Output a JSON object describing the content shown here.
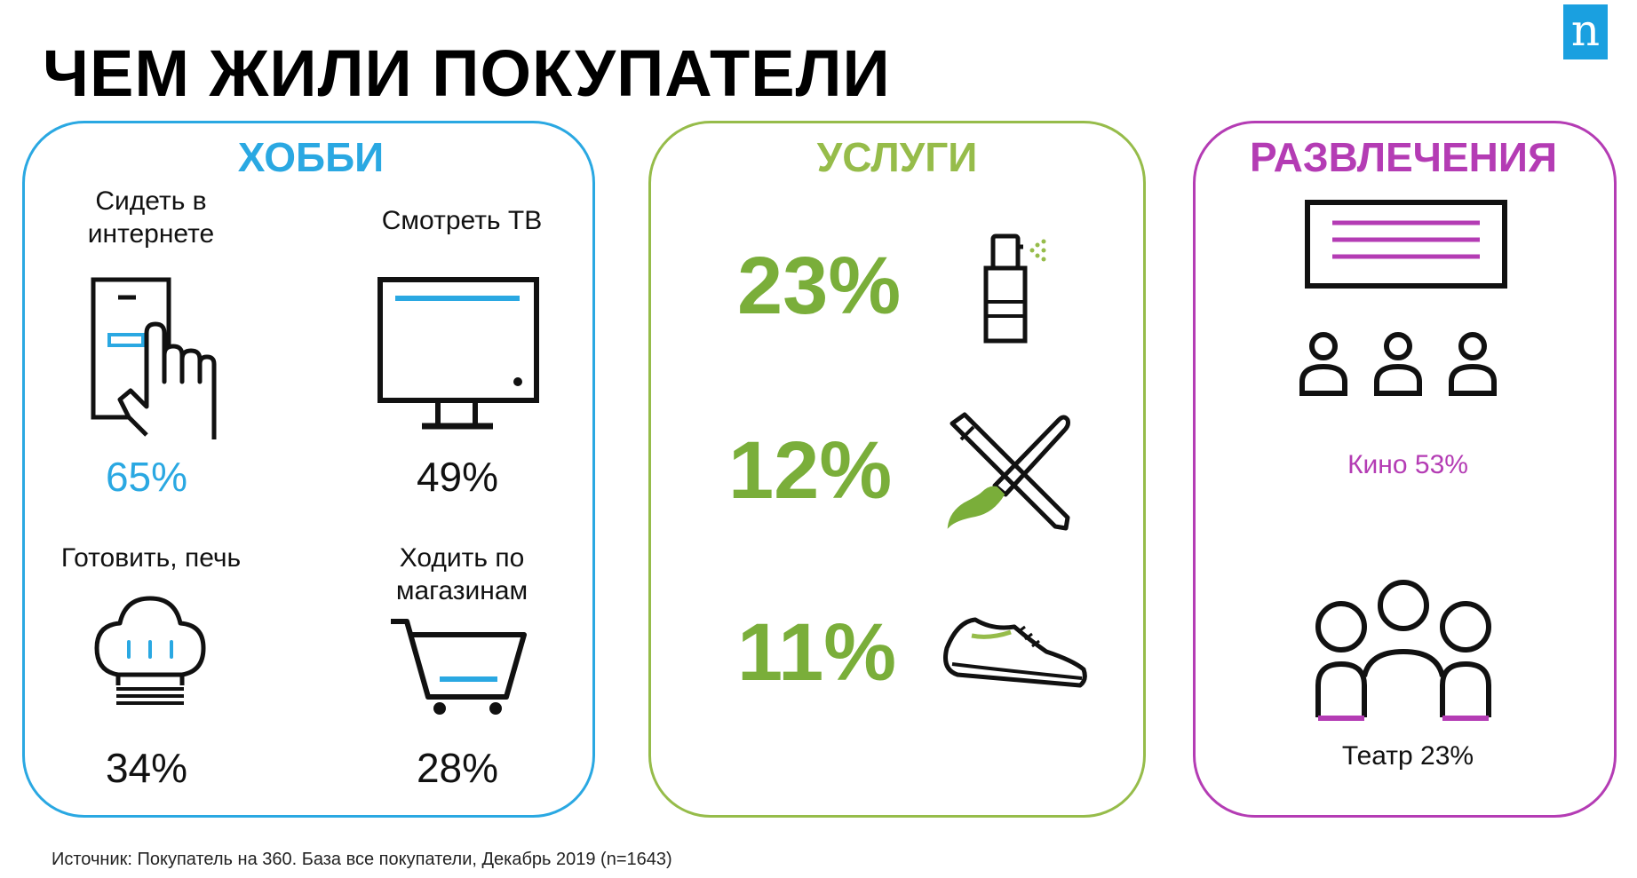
{
  "title": "ЧЕМ ЖИЛИ ПОКУПАТЕЛИ",
  "logo": "n",
  "colors": {
    "hobby": "#2aa8e2",
    "services": "#96bc4a",
    "services_text": "#7aae3a",
    "entertainment": "#b43cb4",
    "logo_bg": "#1aa0e0"
  },
  "hobby": {
    "title": "ХОББИ",
    "items": [
      {
        "label_line1": "Сидеть в",
        "label_line2": "интернете",
        "percent": "65%",
        "icon": "phone-tap-icon"
      },
      {
        "label_line1": "Смотреть ТВ",
        "label_line2": "",
        "percent": "49%",
        "icon": "tv-icon"
      },
      {
        "label_line1": "Готовить, печь",
        "label_line2": "",
        "percent": "34%",
        "icon": "chef-hat-icon"
      },
      {
        "label_line1": "Ходить по",
        "label_line2": "магазинам",
        "percent": "28%",
        "icon": "shopping-cart-icon"
      }
    ]
  },
  "services": {
    "title": "УСЛУГИ",
    "items": [
      {
        "percent": "23%",
        "icon": "spray-bottle-icon"
      },
      {
        "percent": "12%",
        "icon": "pen-brush-icon"
      },
      {
        "percent": "11%",
        "icon": "sneaker-icon"
      }
    ]
  },
  "entertainment": {
    "title": "РАЗВЛЕЧЕНИЯ",
    "items": [
      {
        "label": "Кино 53%",
        "icon": "cinema-icon"
      },
      {
        "label": "Театр 23%",
        "icon": "theatre-audience-icon"
      }
    ]
  },
  "source": "Источник: Покупатель на 360. База все покупатели, Декабрь  2019 (n=1643)"
}
